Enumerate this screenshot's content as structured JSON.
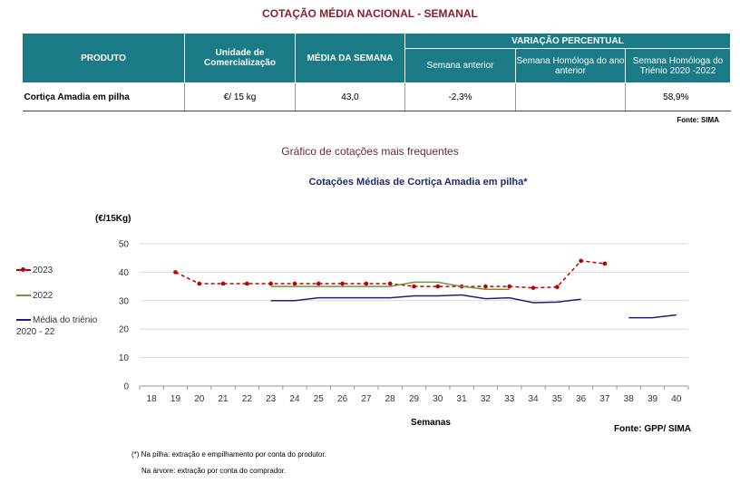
{
  "header": {
    "title": "COTAÇÃO MÉDIA NACIONAL - SEMANAL"
  },
  "table": {
    "col_produto": "PRODUTO",
    "col_unidade": "Unidade de Comercialização",
    "col_media": "MÉDIA DA SEMANA",
    "col_variacao": "VARIAÇÃO PERCENTUAL",
    "col_sem_anterior": "Semana anterior",
    "col_sem_homologa": "Semana Homóloga do ano anterior",
    "col_sem_trienio": "Semana Homóloga do Triénio 2020 -2022",
    "row": {
      "produto": "Cortiça Amadia em pilha",
      "unidade": "€/ 15 kg",
      "media": "43,0",
      "sem_anterior": "-2,3%",
      "sem_homologa": "",
      "sem_trienio": "58,9%"
    },
    "source": "Fonte: SIMA"
  },
  "section_title": "Gráfico de cotações mais frequentes",
  "chart_data": {
    "type": "line",
    "title": "Cotações Médias de Cortiça Amadia em pilha*",
    "ylabel": "(€/15Kg)",
    "xlabel": "Semanas",
    "x": [
      18,
      19,
      20,
      21,
      22,
      23,
      24,
      25,
      26,
      27,
      28,
      29,
      30,
      31,
      32,
      33,
      34,
      35,
      36,
      37,
      38,
      39,
      40
    ],
    "ylim": [
      0,
      50
    ],
    "yticks": [
      0,
      10,
      20,
      30,
      40,
      50
    ],
    "grid": "horizontal",
    "legend": "left",
    "series": [
      {
        "name": "2023",
        "color": "#c00000",
        "style": "dashed-markers",
        "values": [
          null,
          40,
          36,
          36,
          36,
          36,
          36,
          36,
          36,
          36,
          36,
          35,
          35,
          35,
          35,
          35,
          34.5,
          34.8,
          44,
          43,
          null,
          null,
          null
        ]
      },
      {
        "name": "2022",
        "color": "#76933c",
        "style": "solid",
        "values": [
          null,
          null,
          null,
          null,
          null,
          35,
          35,
          35,
          35,
          35,
          35,
          36.5,
          36.5,
          35,
          34,
          34,
          null,
          null,
          null,
          null,
          null,
          null,
          null
        ]
      },
      {
        "name": "Média do triénio 2020 - 22",
        "color": "#1f1f7a",
        "style": "solid",
        "values": [
          null,
          null,
          null,
          null,
          null,
          30,
          30,
          31,
          31,
          31,
          31,
          31.7,
          31.7,
          32,
          30.7,
          31,
          29.3,
          29.5,
          30.5,
          null,
          24,
          24,
          25
        ]
      }
    ],
    "source": "Fonte: GPP/ SIMA"
  },
  "notes": {
    "line1": "(*) Na pilha: extração e empilhamento por conta do produtor.",
    "line2": "Na árvore: extração por conta do comprador."
  }
}
